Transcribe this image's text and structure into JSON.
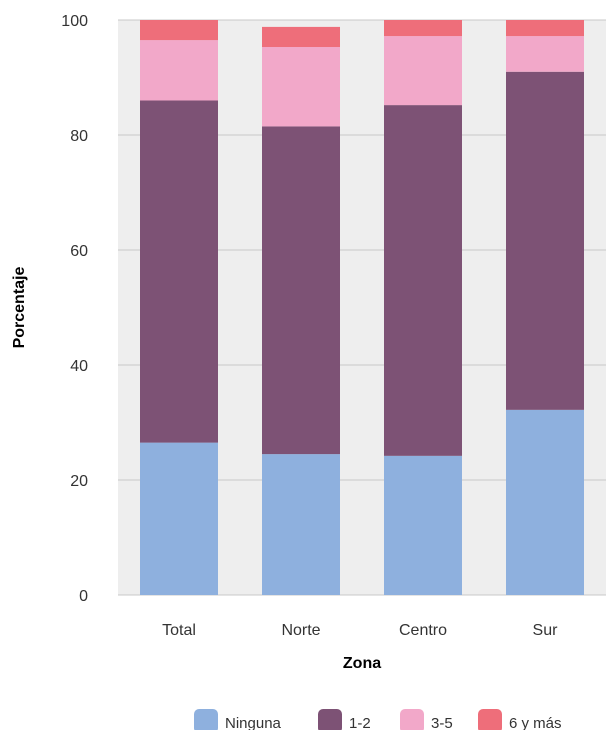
{
  "chart_data": {
    "type": "bar",
    "stacked": true,
    "categories": [
      "Total",
      "Norte",
      "Centro",
      "Sur"
    ],
    "series": [
      {
        "name": "Ninguna",
        "values": [
          26.5,
          24.5,
          24.2,
          32.2
        ]
      },
      {
        "name": "1-2",
        "values": [
          59.5,
          57.0,
          61.0,
          58.8
        ]
      },
      {
        "name": "3-5",
        "values": [
          10.5,
          13.8,
          12.0,
          6.2
        ]
      },
      {
        "name": "6 y más",
        "values": [
          3.5,
          3.5,
          2.8,
          2.8
        ]
      }
    ],
    "title": "",
    "xlabel": "Zona",
    "ylabel": "Porcentaje",
    "ylim": [
      0,
      100
    ],
    "yticks": [
      0,
      20,
      40,
      60,
      80,
      100
    ],
    "grid": true,
    "legend_position": "bottom"
  },
  "colors": {
    "Ninguna": "#8eb0de",
    "1-2": "#7d5275",
    "3-5": "#f2a8c9",
    "6 y más": "#ee6e7a",
    "plot_background": "#eeeeee",
    "grid": "#c8c8c8"
  }
}
